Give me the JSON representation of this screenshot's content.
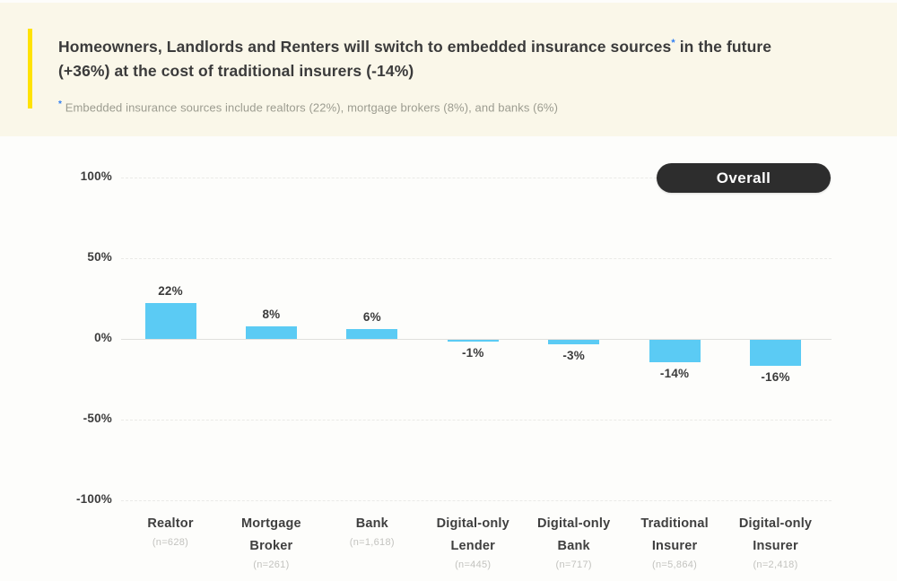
{
  "header": {
    "background_color": "#FAF7E9",
    "accent_color": "#FFE203",
    "asterisk_color": "#2F7EF2",
    "title": {
      "line1_pre": "Homeowners, Landlords and Renters will switch to embedded insurance sources",
      "asterisk": "*",
      "line1_post": " in the future",
      "line2": "(+36%) at the cost of traditional insurers (-14%)"
    },
    "footnote": {
      "asterisk": "*",
      "text": " Embedded insurance sources include realtors (22%), mortgage brokers (8%), and banks (6%)"
    }
  },
  "filter": {
    "overall_label": "Overall"
  },
  "chart_data": {
    "type": "bar",
    "title": "",
    "xlabel": "",
    "ylabel": "",
    "categories": [
      "Realtor",
      "Mortgage Broker",
      "Bank",
      "Digital-only Lender",
      "Digital-only Bank",
      "Traditional Insurer",
      "Digital-only Insurer"
    ],
    "sample_sizes": [
      "(n=628)",
      "(n=261)",
      "(n=1,618)",
      "(n=445)",
      "(n=717)",
      "(n=5,864)",
      "(n=2,418)"
    ],
    "values": [
      22,
      8,
      6,
      -1,
      -3,
      -14,
      -16
    ],
    "value_labels": [
      "22%",
      "8%",
      "6%",
      "-1%",
      "-3%",
      "-14%",
      "-16%"
    ],
    "ylim": [
      -100,
      100
    ],
    "yticks": [
      100,
      50,
      0,
      -50,
      -100
    ],
    "ytick_labels": [
      "100%",
      "50%",
      "0%",
      "-50%",
      "-100%"
    ],
    "bar_color": "#5BCBF4",
    "grid": "horizontal dashed, solid zero line",
    "legend": "none"
  }
}
